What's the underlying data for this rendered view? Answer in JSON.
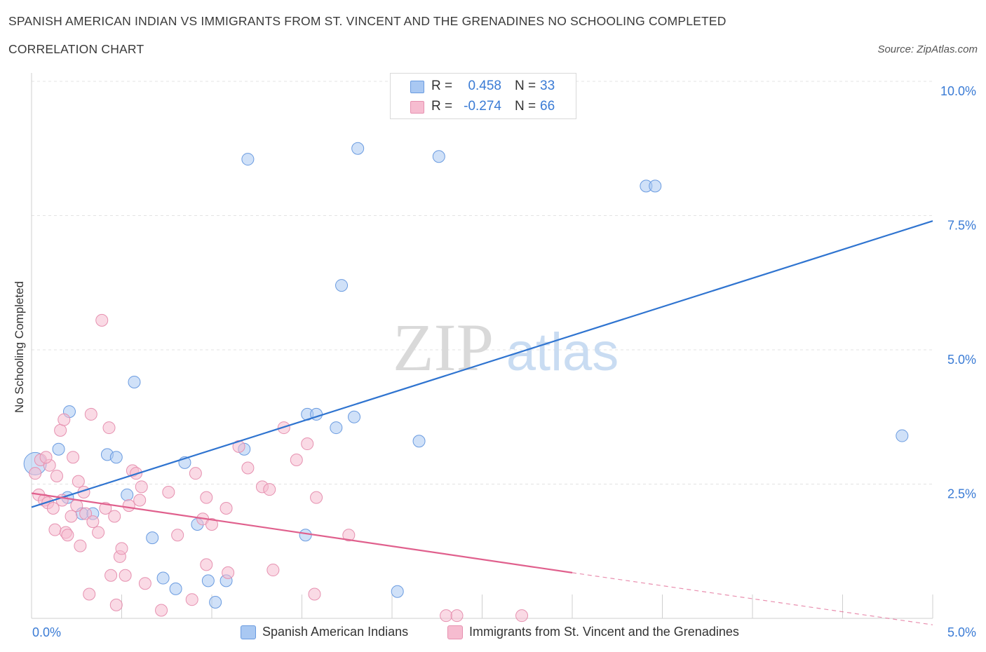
{
  "header": {
    "title_line1": "SPANISH AMERICAN INDIAN VS IMMIGRANTS FROM ST. VINCENT AND THE GRENADINES NO SCHOOLING COMPLETED",
    "title_line2": "CORRELATION CHART",
    "source": "Source: ZipAtlas.com"
  },
  "watermark": {
    "zip": "ZIP",
    "atlas": "atlas"
  },
  "legend_stats": [
    {
      "r_label": "R =",
      "r_value": "0.458",
      "n_label": "N =",
      "n_value": "33",
      "color": "#a9c8f2",
      "stroke": "#6a9be0"
    },
    {
      "r_label": "R =",
      "r_value": "-0.274",
      "n_label": "N =",
      "n_value": "66",
      "color": "#f6bcd0",
      "stroke": "#e691b0"
    }
  ],
  "chart_data": {
    "type": "scatter",
    "title": "SPANISH AMERICAN INDIAN VS IMMIGRANTS FROM ST. VINCENT AND THE GRENADINES NO SCHOOLING COMPLETED CORRELATION CHART",
    "xlabel": "",
    "ylabel": "No Schooling Completed",
    "xlim": [
      0,
      5
    ],
    "ylim": [
      0,
      10
    ],
    "x_tick_labels": [
      "0.0%",
      "5.0%"
    ],
    "y_tick_labels": [
      "2.5%",
      "5.0%",
      "7.5%",
      "10.0%"
    ],
    "y_ticks": [
      2.5,
      5.0,
      7.5,
      10.0
    ],
    "grid": true,
    "legend_position": "bottom",
    "series": [
      {
        "name": "Spanish American Indians",
        "color": "#a9c8f2",
        "stroke": "#6a9be0",
        "trend_color": "#2f74d0",
        "trend": {
          "x0": 0,
          "y0": 2.07,
          "x1": 5,
          "y1": 7.4
        },
        "points": [
          [
            0.02,
            2.88
          ],
          [
            0.2,
            2.25
          ],
          [
            0.15,
            3.15
          ],
          [
            0.21,
            3.85
          ],
          [
            0.28,
            1.95
          ],
          [
            0.34,
            1.95
          ],
          [
            0.42,
            3.05
          ],
          [
            0.47,
            3.0
          ],
          [
            0.53,
            2.3
          ],
          [
            0.57,
            4.4
          ],
          [
            0.67,
            1.5
          ],
          [
            0.73,
            0.75
          ],
          [
            0.8,
            0.55
          ],
          [
            0.85,
            2.9
          ],
          [
            0.92,
            1.75
          ],
          [
            0.98,
            0.7
          ],
          [
            1.02,
            0.3
          ],
          [
            1.08,
            0.7
          ],
          [
            1.2,
            8.55
          ],
          [
            1.18,
            3.15
          ],
          [
            1.52,
            1.55
          ],
          [
            1.53,
            3.8
          ],
          [
            1.58,
            3.8
          ],
          [
            1.69,
            3.55
          ],
          [
            1.72,
            6.2
          ],
          [
            1.79,
            3.75
          ],
          [
            1.81,
            8.75
          ],
          [
            2.03,
            0.5
          ],
          [
            2.15,
            3.3
          ],
          [
            2.26,
            8.6
          ],
          [
            3.41,
            8.05
          ],
          [
            3.46,
            8.05
          ],
          [
            4.83,
            3.4
          ]
        ],
        "sizes": [
          30
        ]
      },
      {
        "name": "Immigrants from St. Vincent and the Grenadines",
        "color": "#f6bcd0",
        "stroke": "#e691b0",
        "trend_color": "#e0608d",
        "trend": {
          "x0": 0,
          "y0": 2.33,
          "x1": 3.0,
          "y1": 0.85
        },
        "trend_dashed": {
          "x0": 3.0,
          "y0": 0.85,
          "x1": 5,
          "y1": -0.12
        },
        "points": [
          [
            0.02,
            2.7
          ],
          [
            0.04,
            2.3
          ],
          [
            0.05,
            2.95
          ],
          [
            0.07,
            2.2
          ],
          [
            0.09,
            2.15
          ],
          [
            0.1,
            2.85
          ],
          [
            0.12,
            2.05
          ],
          [
            0.13,
            1.65
          ],
          [
            0.14,
            2.65
          ],
          [
            0.16,
            3.5
          ],
          [
            0.17,
            2.2
          ],
          [
            0.18,
            3.7
          ],
          [
            0.19,
            1.6
          ],
          [
            0.2,
            1.55
          ],
          [
            0.22,
            1.9
          ],
          [
            0.23,
            3.0
          ],
          [
            0.25,
            2.1
          ],
          [
            0.26,
            2.55
          ],
          [
            0.27,
            1.35
          ],
          [
            0.29,
            2.35
          ],
          [
            0.3,
            1.95
          ],
          [
            0.32,
            0.45
          ],
          [
            0.33,
            3.8
          ],
          [
            0.34,
            1.8
          ],
          [
            0.37,
            1.6
          ],
          [
            0.39,
            5.55
          ],
          [
            0.41,
            2.05
          ],
          [
            0.43,
            3.55
          ],
          [
            0.44,
            0.8
          ],
          [
            0.46,
            1.9
          ],
          [
            0.47,
            0.25
          ],
          [
            0.49,
            1.15
          ],
          [
            0.5,
            1.3
          ],
          [
            0.52,
            0.8
          ],
          [
            0.54,
            2.1
          ],
          [
            0.56,
            2.75
          ],
          [
            0.58,
            2.7
          ],
          [
            0.6,
            2.2
          ],
          [
            0.61,
            2.45
          ],
          [
            0.63,
            0.65
          ],
          [
            0.72,
            0.15
          ],
          [
            0.76,
            2.35
          ],
          [
            0.81,
            1.55
          ],
          [
            0.89,
            0.35
          ],
          [
            0.91,
            2.7
          ],
          [
            0.95,
            1.85
          ],
          [
            0.97,
            2.25
          ],
          [
            0.97,
            1.0
          ],
          [
            1.0,
            1.75
          ],
          [
            1.08,
            2.05
          ],
          [
            1.09,
            0.85
          ],
          [
            1.15,
            3.2
          ],
          [
            1.2,
            2.8
          ],
          [
            1.28,
            2.45
          ],
          [
            1.32,
            2.4
          ],
          [
            1.34,
            0.9
          ],
          [
            1.4,
            3.55
          ],
          [
            1.47,
            2.95
          ],
          [
            1.53,
            3.25
          ],
          [
            1.57,
            0.45
          ],
          [
            1.58,
            2.25
          ],
          [
            1.76,
            1.55
          ],
          [
            2.3,
            0.05
          ],
          [
            2.36,
            0.05
          ],
          [
            2.72,
            0.05
          ],
          [
            0.08,
            3.0
          ]
        ],
        "sizes": [
          30
        ]
      }
    ]
  }
}
